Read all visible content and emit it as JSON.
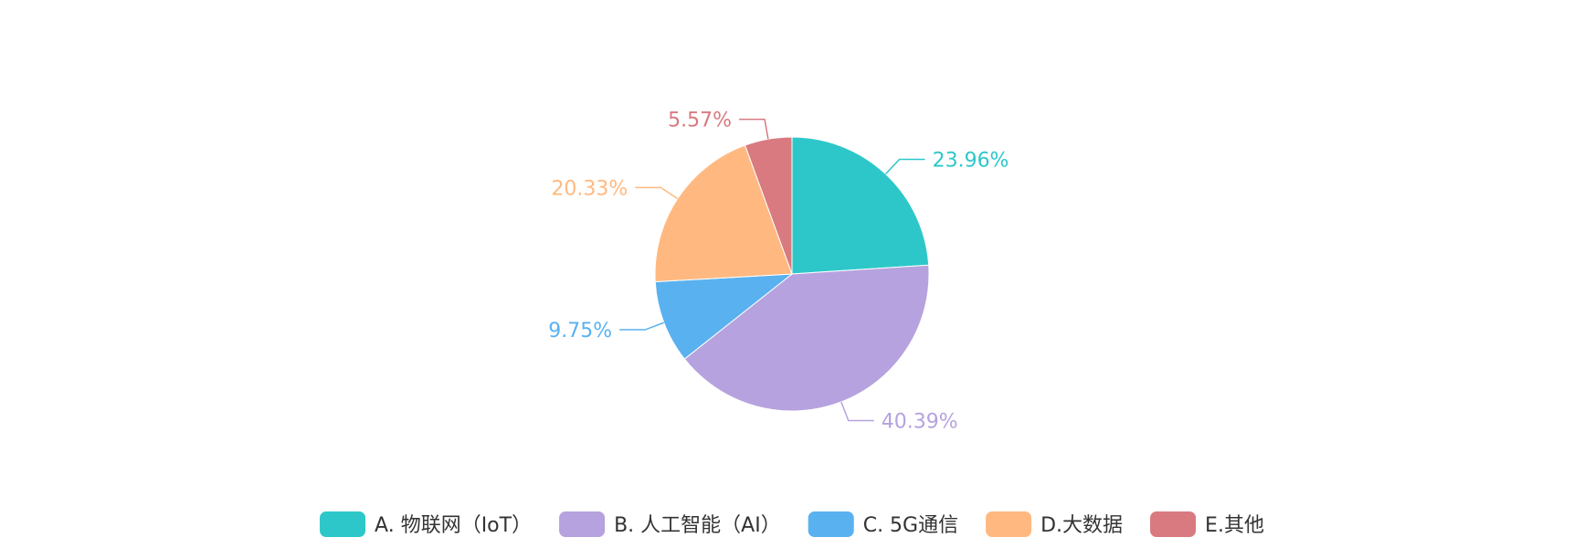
{
  "chart_data": {
    "type": "pie",
    "series": [
      {
        "name": "A. 物联网（IoT）",
        "value": 23.96,
        "label": "23.96%",
        "color": "#2ec7c9"
      },
      {
        "name": "B. 人工智能（AI）",
        "value": 40.39,
        "label": "40.39%",
        "color": "#b6a2de"
      },
      {
        "name": "C. 5G通信",
        "value": 9.75,
        "label": "9.75%",
        "color": "#5ab1ef"
      },
      {
        "name": "D.大数据",
        "value": 20.33,
        "label": "20.33%",
        "color": "#ffb980"
      },
      {
        "name": "E.其他",
        "value": 5.57,
        "label": "5.57%",
        "color": "#d87a80"
      }
    ],
    "legend_position": "bottom-center",
    "start_angle": "12 o'clock",
    "direction": "clockwise"
  }
}
